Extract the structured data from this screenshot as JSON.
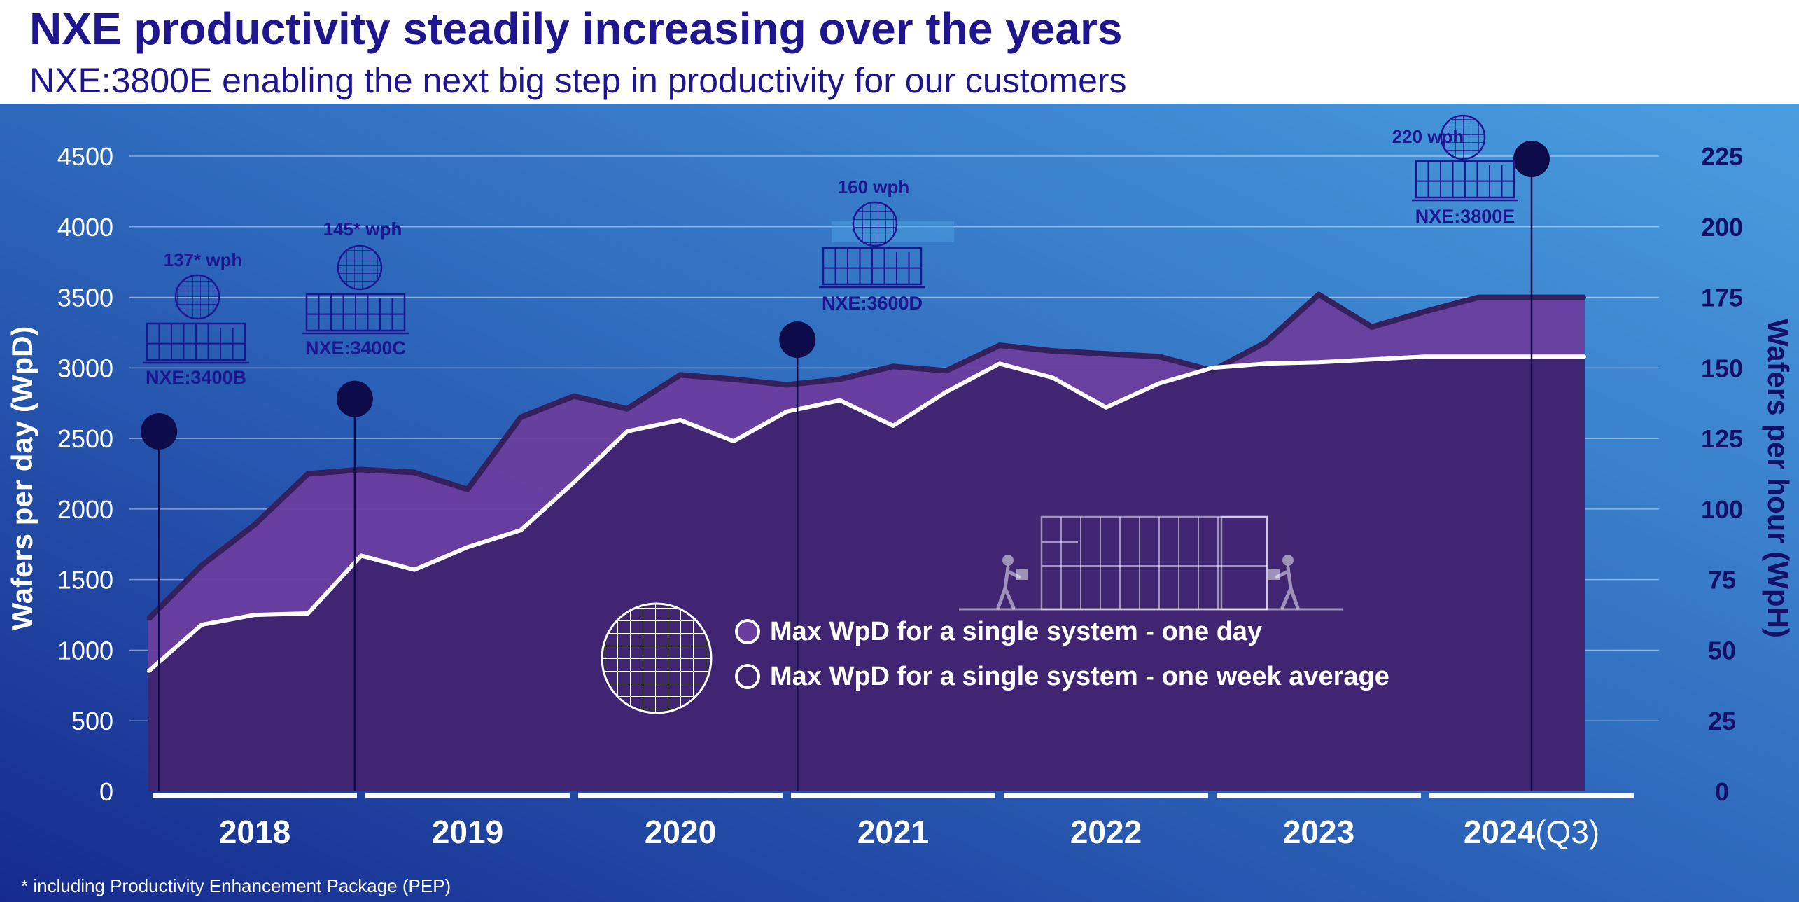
{
  "header": {
    "title": "NXE productivity steadily increasing over the years",
    "subtitle": "NXE:3800E enabling the next big step in productivity for our customers"
  },
  "footnote": "* including Productivity Enhancement Package (PEP)",
  "colors": {
    "title": "#1f168f",
    "background_top": "#4a9ee0",
    "background_bottom": "#162a8e",
    "max_day_fill": "#6a3d9e",
    "max_day_line": "#35205e",
    "week_avg_fill": "#3d2470",
    "week_avg_line": "#ffffff",
    "dark_navy": "#0e0b4a"
  },
  "icons": [
    "wafer-icon",
    "scanner-machine-icon",
    "worker-figure-icon"
  ],
  "chart_data": {
    "type": "area",
    "title": "",
    "ylabel": "Wafers per day (WpD)",
    "y2label": "Wafers per hour (WpH)",
    "ylim": [
      0,
      4500
    ],
    "y2lim": [
      0,
      225
    ],
    "yticks": [
      "0",
      "500",
      "1000",
      "1500",
      "2000",
      "2500",
      "3000",
      "3500",
      "4000",
      "4500"
    ],
    "y2ticks": [
      "0",
      "25",
      "50",
      "75",
      "100",
      "125",
      "150",
      "175",
      "200",
      "225"
    ],
    "grid": true,
    "xlim": [
      2018,
      2025
    ],
    "years": [
      {
        "label": "2018",
        "suffix": ""
      },
      {
        "label": "2019",
        "suffix": ""
      },
      {
        "label": "2020",
        "suffix": ""
      },
      {
        "label": "2021",
        "suffix": ""
      },
      {
        "label": "2022",
        "suffix": ""
      },
      {
        "label": "2023",
        "suffix": ""
      },
      {
        "label": "2024",
        "suffix": "(Q3)"
      }
    ],
    "series": [
      {
        "name": "Max WpD for a single system - one day",
        "x": [
          2018.0,
          2018.25,
          2018.5,
          2018.75,
          2019.0,
          2019.25,
          2019.5,
          2019.75,
          2020.0,
          2020.25,
          2020.5,
          2020.75,
          2021.0,
          2021.25,
          2021.5,
          2021.75,
          2022.0,
          2022.25,
          2022.5,
          2022.75,
          2023.0,
          2023.25,
          2023.5,
          2023.75,
          2024.0,
          2024.25,
          2024.5,
          2024.75
        ],
        "values": [
          1220,
          1600,
          1890,
          2250,
          2280,
          2260,
          2140,
          2650,
          2800,
          2710,
          2950,
          2920,
          2880,
          2920,
          3010,
          2980,
          3160,
          3120,
          3100,
          3080,
          2980,
          3180,
          3520,
          3290,
          3400,
          3500,
          3500,
          3500
        ]
      },
      {
        "name": "Max WpD for a single system - one week average",
        "x": [
          2018.0,
          2018.25,
          2018.5,
          2018.75,
          2019.0,
          2019.25,
          2019.5,
          2019.75,
          2020.0,
          2020.25,
          2020.5,
          2020.75,
          2021.0,
          2021.25,
          2021.5,
          2021.75,
          2022.0,
          2022.25,
          2022.5,
          2022.75,
          2023.0,
          2023.25,
          2023.5,
          2023.75,
          2024.0,
          2024.25,
          2024.5,
          2024.75
        ],
        "values": [
          850,
          1180,
          1250,
          1260,
          1670,
          1570,
          1730,
          1850,
          2190,
          2550,
          2630,
          2480,
          2690,
          2770,
          2590,
          2830,
          3030,
          2930,
          2720,
          2890,
          3000,
          3030,
          3040,
          3060,
          3080,
          3080,
          3080,
          3080
        ]
      }
    ],
    "milestones": [
      {
        "system": "NXE:3400B",
        "wph": "137* wph",
        "x": 2018.05,
        "value": 2550
      },
      {
        "system": "NXE:3400C",
        "wph": "145* wph",
        "x": 2018.97,
        "value": 2780
      },
      {
        "system": "NXE:3600D",
        "wph": "160 wph",
        "x": 2021.05,
        "value": 3200
      },
      {
        "system": "NXE:3800E",
        "wph": "220 wph",
        "x": 2024.5,
        "value": 4480
      }
    ],
    "legend": "center"
  }
}
